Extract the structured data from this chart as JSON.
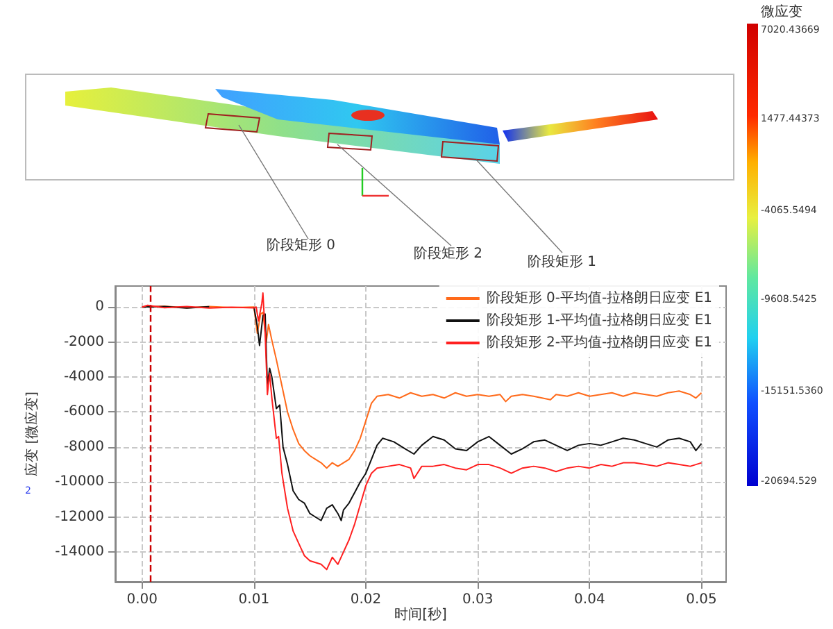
{
  "chart_data": {
    "type": "line",
    "xlabel": "时间[秒]",
    "ylabel": "应变 [微应变]",
    "xlim": [
      -0.0024,
      0.0522
    ],
    "ylim": [
      -15700,
      1200
    ],
    "xticks": [
      {
        "value": 0,
        "label": "0.00"
      },
      {
        "value": 0.01,
        "label": "0.01"
      },
      {
        "value": 0.02,
        "label": "0.02"
      },
      {
        "value": 0.03,
        "label": "0.03"
      },
      {
        "value": 0.04,
        "label": "0.04"
      },
      {
        "value": 0.05,
        "label": "0.05"
      }
    ],
    "yticks": [
      0,
      -2000,
      -4000,
      -6000,
      -8000,
      -10000,
      -12000,
      -14000
    ],
    "grid": true,
    "legend": "top right",
    "marker": "none",
    "line_style": "solid",
    "series": [
      {
        "name": "阶段矩形 0-平均值-拉格朗日应变 E1",
        "color": "#ff6a1a",
        "x": [
          0,
          0.002,
          0.004,
          0.006,
          0.008,
          0.01,
          0.0103,
          0.0106,
          0.0108,
          0.0111,
          0.0113,
          0.0116,
          0.012,
          0.0125,
          0.013,
          0.0135,
          0.014,
          0.0145,
          0.015,
          0.0155,
          0.016,
          0.0165,
          0.017,
          0.0175,
          0.018,
          0.0185,
          0.019,
          0.0195,
          0.02,
          0.0205,
          0.021,
          0.022,
          0.023,
          0.024,
          0.025,
          0.026,
          0.027,
          0.028,
          0.029,
          0.03,
          0.031,
          0.032,
          0.0325,
          0.033,
          0.034,
          0.035,
          0.0365,
          0.037,
          0.038,
          0.039,
          0.04,
          0.041,
          0.042,
          0.043,
          0.044,
          0.045,
          0.046,
          0.047,
          0.048,
          0.049,
          0.0495,
          0.05
        ],
        "values": [
          0,
          50,
          -50,
          30,
          -30,
          0,
          -1500,
          -400,
          -300,
          -2000,
          -1000,
          -1900,
          -3000,
          -4500,
          -6000,
          -7000,
          -7800,
          -8200,
          -8500,
          -8700,
          -8900,
          -9200,
          -8900,
          -9100,
          -8900,
          -8700,
          -8200,
          -7500,
          -6500,
          -5500,
          -5100,
          -5000,
          -5200,
          -4900,
          -5100,
          -5000,
          -5200,
          -4900,
          -5100,
          -5000,
          -5100,
          -5000,
          -5400,
          -5100,
          -5000,
          -5100,
          -5300,
          -5000,
          -5100,
          -4900,
          -5100,
          -5000,
          -4900,
          -5100,
          -4900,
          -5000,
          -5100,
          -4900,
          -4800,
          -5000,
          -5200,
          -4900
        ]
      },
      {
        "name": "阶段矩形 1-平均值-拉格朗日应变 E1",
        "color": "#111111",
        "x": [
          0,
          0.002,
          0.004,
          0.006,
          0.008,
          0.01,
          0.0103,
          0.0105,
          0.0108,
          0.011,
          0.0112,
          0.0114,
          0.0116,
          0.012,
          0.0123,
          0.0126,
          0.013,
          0.0135,
          0.014,
          0.0145,
          0.015,
          0.0155,
          0.016,
          0.0165,
          0.017,
          0.0175,
          0.0178,
          0.018,
          0.0185,
          0.019,
          0.0195,
          0.02,
          0.0205,
          0.021,
          0.0215,
          0.0225,
          0.0235,
          0.0243,
          0.025,
          0.026,
          0.027,
          0.028,
          0.029,
          0.03,
          0.031,
          0.032,
          0.033,
          0.034,
          0.035,
          0.036,
          0.037,
          0.038,
          0.039,
          0.04,
          0.041,
          0.042,
          0.043,
          0.044,
          0.045,
          0.046,
          0.047,
          0.048,
          0.049,
          0.0495,
          0.05
        ],
        "values": [
          0,
          30,
          -60,
          20,
          null,
          0,
          -1100,
          -2200,
          -500,
          -400,
          -4500,
          -3500,
          -4000,
          -5800,
          -5600,
          -8000,
          -9000,
          -10500,
          -11000,
          -11200,
          -11800,
          -12000,
          -12200,
          -11500,
          -11300,
          -11800,
          -12200,
          -11600,
          -11200,
          -10600,
          -10000,
          -9500,
          -8700,
          -7900,
          -7500,
          -7700,
          -8100,
          -8400,
          -7900,
          -7400,
          -7600,
          -8100,
          -8200,
          -7700,
          -7400,
          -7900,
          -8400,
          -8100,
          -7700,
          -7600,
          -7900,
          -8200,
          -7900,
          -7800,
          -7900,
          -7700,
          -7500,
          -7600,
          -7800,
          -8000,
          -7600,
          -7500,
          -7700,
          -8200,
          -7800
        ]
      },
      {
        "name": "阶段矩形 2-平均值-拉格朗日应变 E1",
        "color": "#ff2020",
        "x": [
          0,
          0.0005,
          0.002,
          0.004,
          0.006,
          0.008,
          0.01,
          0.0102,
          0.0104,
          0.0107,
          0.0108,
          0.011,
          0.0112,
          0.0114,
          0.0116,
          0.012,
          0.0122,
          0.0125,
          0.013,
          0.0135,
          0.014,
          0.0145,
          0.015,
          0.0155,
          0.016,
          0.0165,
          0.017,
          0.0175,
          0.018,
          0.0185,
          0.019,
          0.0195,
          0.02,
          0.0205,
          0.021,
          0.022,
          0.023,
          0.024,
          0.0243,
          0.025,
          0.026,
          0.027,
          0.028,
          0.029,
          0.03,
          0.031,
          0.032,
          0.033,
          0.034,
          0.035,
          0.036,
          0.037,
          0.038,
          0.039,
          0.04,
          0.041,
          0.042,
          0.043,
          0.044,
          0.045,
          0.046,
          0.047,
          0.048,
          0.049,
          0.05
        ],
        "values": [
          0,
          100,
          -40,
          30,
          -60,
          -10,
          -50,
          0,
          -800,
          200,
          800,
          -1500,
          -5000,
          -3800,
          -5200,
          -7500,
          -7400,
          -9500,
          -11500,
          -12800,
          -13500,
          -14200,
          -14500,
          -14600,
          -14700,
          -15000,
          -14300,
          -14700,
          -14000,
          -13300,
          -12400,
          -11300,
          -10200,
          -9500,
          -9200,
          -9100,
          -9000,
          -9200,
          -9800,
          -9100,
          -9100,
          -9000,
          -9200,
          -9300,
          -9000,
          -9000,
          -9200,
          -9500,
          -9200,
          -9100,
          -9200,
          -9400,
          -9200,
          -9100,
          -9200,
          -9000,
          -9100,
          -8900,
          -8900,
          -9000,
          -9100,
          -8900,
          -9000,
          -9100,
          -8900
        ]
      }
    ],
    "ref_lines": [
      {
        "axis": "x",
        "value": 0.0007,
        "color": "#cc0000",
        "line_style": "dashed"
      }
    ],
    "annotations": [
      "阶段矩形 0",
      "阶段矩形 2",
      "阶段矩形 1",
      "微应变",
      "7020.43669",
      "1477.44373",
      "-4065.5494",
      "-9608.5425",
      "-15151.5360",
      "-20694.529",
      "2"
    ]
  }
}
